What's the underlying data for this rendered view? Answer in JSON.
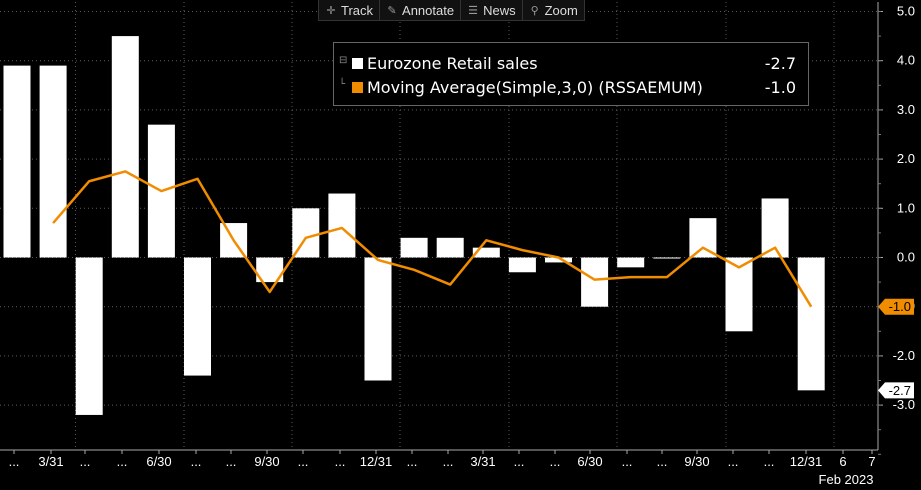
{
  "toolbar": {
    "track": "Track",
    "annotate": "Annotate",
    "news": "News",
    "zoom": "Zoom"
  },
  "legend": {
    "series1_name": "Eurozone Retail sales",
    "series1_value": "-2.7",
    "series2_name": "Moving Average(Simple,3,0) (RSSAEMUM)",
    "series2_value": "-1.0"
  },
  "colors": {
    "background": "#000000",
    "bars": "#ffffff",
    "line": "#f08c00",
    "grid": "#5a5a5a"
  },
  "chart_data": {
    "type": "bar",
    "x_tick_labels": [
      "...",
      "3/31",
      "...",
      "...",
      "6/30",
      "...",
      "...",
      "9/30",
      "...",
      "...",
      "12/31",
      "...",
      "...",
      "3/31",
      "...",
      "...",
      "6/30",
      "...",
      "...",
      "9/30",
      "...",
      "...",
      "12/31",
      "6",
      "7"
    ],
    "x_sublabel": "Feb 2023",
    "y_ticks": [
      "5.0",
      "4.0",
      "3.0",
      "2.0",
      "1.0",
      "0.0",
      "-1.0",
      "-2.0",
      "-3.0"
    ],
    "ylim": [
      -4.2,
      5.2
    ],
    "grid": true,
    "y_axis_side": "right",
    "series": [
      {
        "name": "Eurozone Retail sales",
        "type": "bar",
        "color": "#ffffff",
        "values": [
          3.9,
          3.9,
          -3.2,
          4.5,
          2.7,
          -2.4,
          0.7,
          -0.5,
          1.0,
          1.3,
          -2.5,
          0.4,
          0.4,
          0.2,
          -0.3,
          -0.1,
          -1.0,
          -0.2,
          0.0,
          0.8,
          -1.5,
          1.2,
          -2.7
        ]
      },
      {
        "name": "Moving Average(Simple,3,0) (RSSAEMUM)",
        "type": "line",
        "color": "#f08c00",
        "values": [
          null,
          0.7,
          1.55,
          1.75,
          1.35,
          1.6,
          0.35,
          -0.7,
          0.4,
          0.6,
          -0.05,
          -0.25,
          -0.55,
          0.35,
          0.15,
          0.0,
          -0.45,
          -0.4,
          -0.4,
          0.2,
          -0.2,
          0.2,
          -1.0
        ]
      }
    ],
    "value_labels": [
      {
        "series": "Moving Average(Simple,3,0) (RSSAEMUM)",
        "text": "-1.0",
        "value": -1.0,
        "bg": "#f08c00",
        "fg": "#000000"
      },
      {
        "series": "Eurozone Retail sales",
        "text": "-2.7",
        "value": -2.7,
        "bg": "#ffffff",
        "fg": "#000000"
      }
    ]
  }
}
